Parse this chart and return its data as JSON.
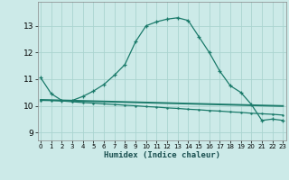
{
  "title": "",
  "xlabel": "Humidex (Indice chaleur)",
  "bg_color": "#cceae8",
  "grid_color": "#aad4d0",
  "line_color": "#1a7a6a",
  "x_ticks": [
    0,
    1,
    2,
    3,
    4,
    5,
    6,
    7,
    8,
    9,
    10,
    11,
    12,
    13,
    14,
    15,
    16,
    17,
    18,
    19,
    20,
    21,
    22,
    23
  ],
  "y_ticks": [
    9,
    10,
    11,
    12,
    13
  ],
  "xlim": [
    -0.3,
    23.3
  ],
  "ylim": [
    8.7,
    13.9
  ],
  "curve1_x": [
    0,
    1,
    2,
    3,
    4,
    5,
    6,
    7,
    8,
    9,
    10,
    11,
    12,
    13,
    14,
    15,
    16,
    17,
    18,
    19,
    20,
    21,
    22,
    23
  ],
  "curve1_y": [
    11.05,
    10.45,
    10.2,
    10.2,
    10.35,
    10.55,
    10.8,
    11.15,
    11.55,
    12.4,
    13.0,
    13.15,
    13.25,
    13.3,
    13.2,
    12.6,
    12.0,
    11.3,
    10.75,
    10.5,
    10.05,
    9.45,
    9.5,
    9.45
  ],
  "curve2_x": [
    0,
    1,
    2,
    3,
    4,
    5,
    6,
    7,
    8,
    9,
    10,
    11,
    12,
    13,
    14,
    15,
    16,
    17,
    18,
    19,
    20,
    21,
    22,
    23
  ],
  "curve2_y": [
    10.2,
    10.2,
    10.18,
    10.15,
    10.12,
    10.1,
    10.07,
    10.05,
    10.02,
    10.0,
    9.97,
    9.95,
    9.92,
    9.9,
    9.87,
    9.85,
    9.82,
    9.8,
    9.77,
    9.75,
    9.72,
    9.7,
    9.68,
    9.65
  ],
  "curve3_x": [
    0,
    1,
    2,
    3,
    4,
    5,
    6,
    7,
    8,
    9,
    10,
    11,
    12,
    13,
    14,
    15,
    16,
    17,
    18,
    19,
    20,
    21,
    22,
    23
  ],
  "curve3_y": [
    10.22,
    10.21,
    10.2,
    10.19,
    10.18,
    10.17,
    10.16,
    10.15,
    10.14,
    10.13,
    10.12,
    10.11,
    10.1,
    10.09,
    10.08,
    10.07,
    10.06,
    10.05,
    10.04,
    10.03,
    10.02,
    10.01,
    10.0,
    9.99
  ]
}
